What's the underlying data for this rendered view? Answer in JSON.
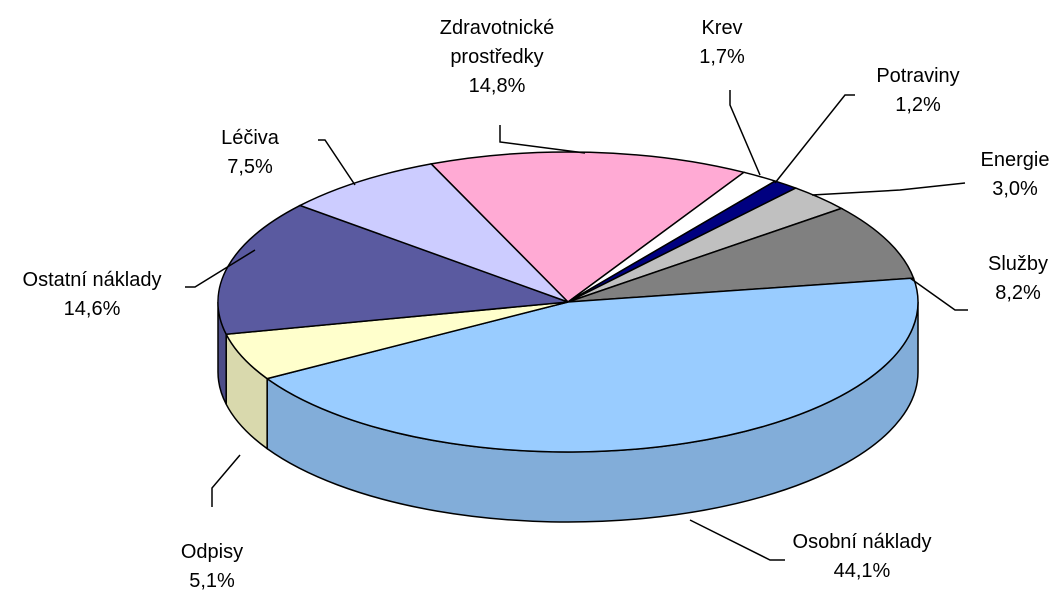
{
  "chart_data": {
    "type": "pie3d",
    "categories": [
      "Zdravotnické prostředky",
      "Krev",
      "Potraviny",
      "Energie",
      "Služby",
      "Osobní náklady",
      "Odpisy",
      "Ostatní náklady",
      "Léčiva"
    ],
    "values": [
      14.8,
      1.7,
      1.2,
      3.0,
      8.2,
      44.1,
      5.1,
      14.6,
      7.5
    ],
    "value_labels": [
      "14,8%",
      "1,7%",
      "1,2%",
      "3,0%",
      "8,2%",
      "44,1%",
      "5,1%",
      "14,6%",
      "7,5%"
    ],
    "colors": [
      "#ffaad4",
      "#ffffff",
      "#000080",
      "#c0c0c0",
      "#808080",
      "#99ccff",
      "#ffffcc",
      "#5a5aa0",
      "#ccccff"
    ]
  }
}
